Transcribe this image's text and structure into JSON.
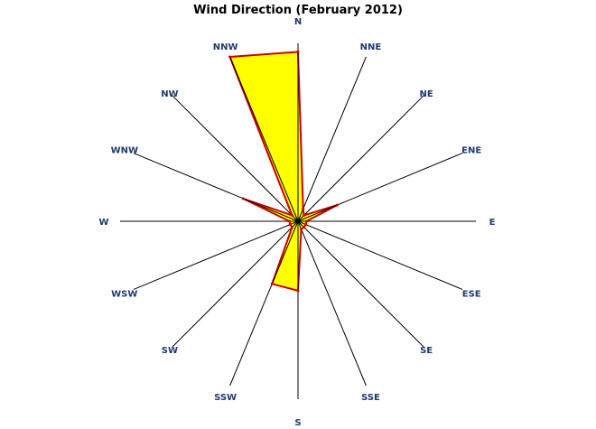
{
  "chart_data": {
    "type": "radar",
    "title": "Wind Direction (February 2012)",
    "directions": [
      "N",
      "NNE",
      "NE",
      "ENE",
      "E",
      "ESE",
      "SE",
      "SSE",
      "S",
      "SSW",
      "SW",
      "WSW",
      "W",
      "WNW",
      "NW",
      "NNW"
    ],
    "values": [
      100,
      8,
      5,
      25,
      5,
      5,
      5,
      5,
      41,
      40,
      5,
      5,
      5,
      35,
      5,
      105
    ],
    "rmax": 105,
    "grid": true,
    "legend": "none"
  },
  "colors": {
    "fill": "#ffff00",
    "outline": "#cc0000",
    "spoke": "#000000",
    "label": "#1f3a6e",
    "title": "#000000"
  }
}
